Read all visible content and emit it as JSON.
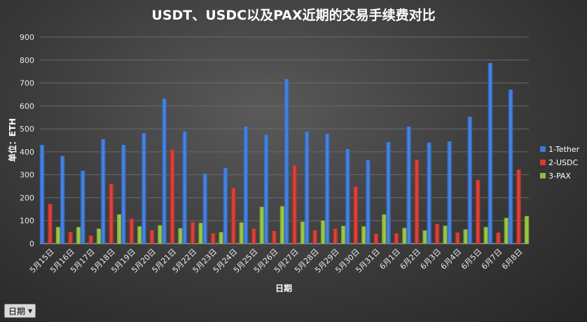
{
  "filter_button": {
    "label": "日期",
    "arrow": "▼"
  },
  "chart_data": {
    "type": "bar",
    "title": "USDT、USDC以及PAX近期的交易手续费对比",
    "xlabel": "日期",
    "ylabel": "单位：ETH",
    "ylim": [
      0,
      900
    ],
    "yticks": [
      0,
      100,
      200,
      300,
      400,
      500,
      600,
      700,
      800,
      900
    ],
    "grid": true,
    "legend_position": "right",
    "categories": [
      "5月15日",
      "5月16日",
      "5月17日",
      "5月18日",
      "5月19日",
      "5月20日",
      "5月21日",
      "5月22日",
      "5月23日",
      "5月24日",
      "5月25日",
      "5月26日",
      "5月27日",
      "5月28日",
      "5月29日",
      "5月30日",
      "5月31日",
      "6月1日",
      "6月2日",
      "6月3日",
      "6月4日",
      "6月5日",
      "6月7日",
      "6月8日"
    ],
    "series": [
      {
        "name": "1-Tether",
        "color": "#3c78d8",
        "values": [
          430,
          382,
          317,
          455,
          430,
          482,
          632,
          488,
          305,
          330,
          510,
          474,
          717,
          488,
          478,
          412,
          363,
          442,
          510,
          440,
          445,
          553,
          787,
          671
        ]
      },
      {
        "name": "2-USDC",
        "color": "#d93b32",
        "values": [
          172,
          50,
          35,
          260,
          108,
          58,
          410,
          93,
          45,
          242,
          65,
          55,
          340,
          58,
          65,
          248,
          43,
          45,
          365,
          85,
          48,
          278,
          48,
          322
        ]
      },
      {
        "name": "3-PAX",
        "color": "#8fba3c",
        "values": [
          72,
          72,
          65,
          127,
          75,
          80,
          67,
          90,
          50,
          92,
          160,
          163,
          95,
          100,
          77,
          75,
          127,
          68,
          57,
          78,
          62,
          72,
          112,
          120
        ]
      }
    ]
  }
}
